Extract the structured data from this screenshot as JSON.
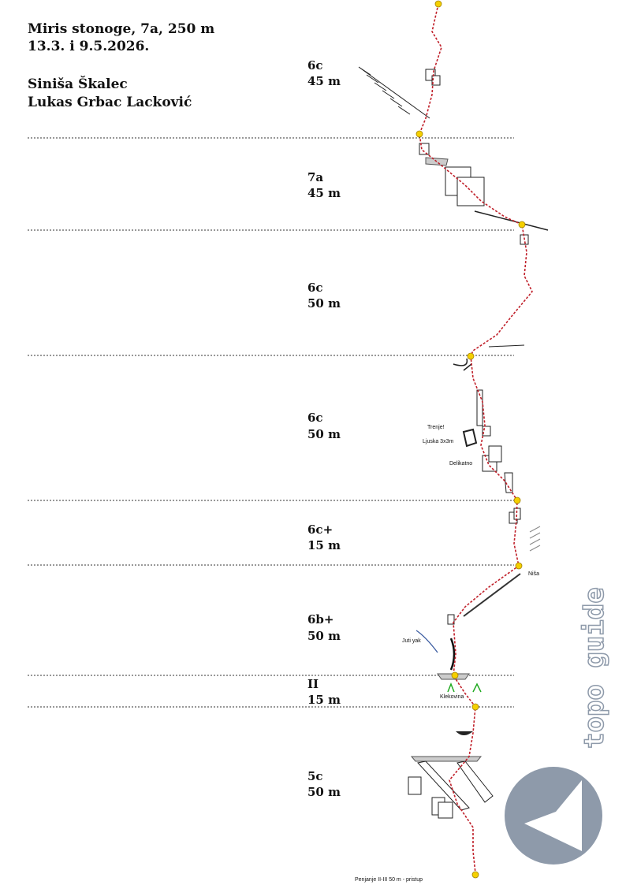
{
  "header": {
    "title": "Miris stonoge, 7a, 250 m",
    "dates": "13.3. i 9.5.2026.",
    "authors": [
      "Siniša Škalec",
      "Lukas Grbac Lacković"
    ]
  },
  "pitches": [
    {
      "grade": "6c",
      "length": "45 m"
    },
    {
      "grade": "7a",
      "length": "45 m"
    },
    {
      "grade": "6c",
      "length": "50 m"
    },
    {
      "grade": "6c",
      "length": "50 m"
    },
    {
      "grade": "6c+",
      "length": "15 m"
    },
    {
      "grade": "6b+",
      "length": "50 m"
    },
    {
      "grade": "II",
      "length": "15 m"
    },
    {
      "grade": "5c",
      "length": "50 m"
    }
  ],
  "notes": [
    "Trenje!",
    "Ljuska 3x3m",
    "Delikatno",
    "Niša",
    "Juti yak",
    "Klekovina",
    "Penjanje II-III 50 m - pristup"
  ],
  "logo": "topo guide"
}
